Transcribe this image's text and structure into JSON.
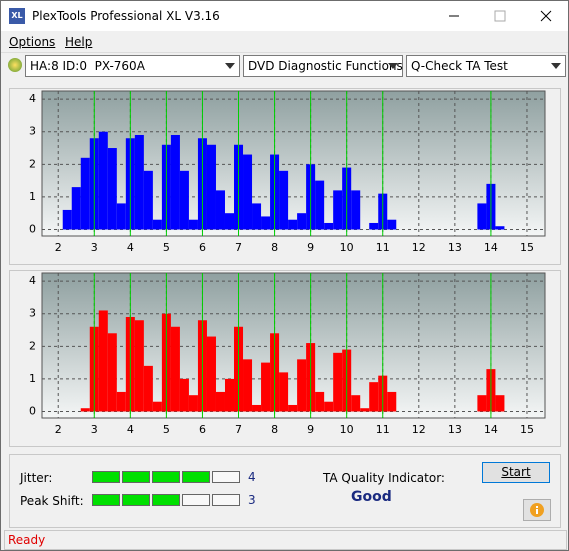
{
  "window": {
    "icon": "XL",
    "title": "PlexTools Professional XL V3.16"
  },
  "menu": [
    "Options",
    "Help"
  ],
  "toolbar": {
    "drive": "HA:8 ID:0  PX-760A",
    "function": "DVD Diagnostic Functions",
    "test": "Q-Check TA Test"
  },
  "chart_data": [
    {
      "type": "bar",
      "color": "#0000ff",
      "marker_color": "#00d000",
      "grid": true,
      "x": [
        2.25,
        2.5,
        2.75,
        3,
        3.25,
        3.5,
        3.75,
        4,
        4.25,
        4.5,
        4.75,
        5,
        5.25,
        5.5,
        5.75,
        6,
        6.25,
        6.5,
        6.75,
        7,
        7.25,
        7.5,
        7.75,
        8,
        8.25,
        8.5,
        8.75,
        9,
        9.25,
        9.5,
        9.75,
        10,
        10.25,
        10.5,
        10.75,
        11,
        11.25,
        11.5,
        11.75,
        12,
        12.25,
        12.5,
        12.75,
        13,
        13.25,
        13.5,
        13.75,
        14,
        14.25,
        14.5
      ],
      "values": [
        0.6,
        1.3,
        2.2,
        2.8,
        3.0,
        2.5,
        0.8,
        2.8,
        2.9,
        1.8,
        0.3,
        2.6,
        2.9,
        1.8,
        0.3,
        2.8,
        2.6,
        1.2,
        0.5,
        2.6,
        2.3,
        0.8,
        0.4,
        2.3,
        1.8,
        0.3,
        0.5,
        2.0,
        1.5,
        0.2,
        1.2,
        1.9,
        1.2,
        0,
        0.2,
        1.1,
        0.3,
        0,
        0,
        0,
        0,
        0,
        0,
        0,
        0,
        0,
        0.8,
        1.4,
        0.1,
        0
      ],
      "bar_width": 0.25,
      "markers": [
        3,
        4,
        5,
        6,
        7,
        8,
        9,
        10,
        11,
        14
      ],
      "xlim": [
        1.55,
        15.5
      ],
      "xticks": [
        2,
        3,
        4,
        5,
        6,
        7,
        8,
        9,
        10,
        11,
        12,
        13,
        14,
        15
      ],
      "ylim": [
        -0.2,
        4.25
      ],
      "yticks": [
        0,
        1,
        2,
        3,
        4
      ]
    },
    {
      "type": "bar",
      "color": "#ff0000",
      "marker_color": "#00d000",
      "grid": true,
      "x": [
        2.25,
        2.5,
        2.75,
        3,
        3.25,
        3.5,
        3.75,
        4,
        4.25,
        4.5,
        4.75,
        5,
        5.25,
        5.5,
        5.75,
        6,
        6.25,
        6.5,
        6.75,
        7,
        7.25,
        7.5,
        7.75,
        8,
        8.25,
        8.5,
        8.75,
        9,
        9.25,
        9.5,
        9.75,
        10,
        10.25,
        10.5,
        10.75,
        11,
        11.25,
        11.5,
        11.75,
        12,
        12.25,
        12.5,
        12.75,
        13,
        13.25,
        13.5,
        13.75,
        14,
        14.25,
        14.5
      ],
      "values": [
        0,
        0,
        0.1,
        2.6,
        3.1,
        2.4,
        0.6,
        2.9,
        2.8,
        1.4,
        0.3,
        3.0,
        2.6,
        1.0,
        0.5,
        2.8,
        2.3,
        0.6,
        1.0,
        2.6,
        1.6,
        0.2,
        1.5,
        2.4,
        1.2,
        0.2,
        1.6,
        2.1,
        0.6,
        0.3,
        1.8,
        1.9,
        0.5,
        0.1,
        0.9,
        1.1,
        0.6,
        0,
        0,
        0,
        0,
        0,
        0,
        0,
        0,
        0,
        0.5,
        1.3,
        0.5,
        0
      ],
      "bar_width": 0.25,
      "markers": [
        3,
        4,
        5,
        6,
        7,
        8,
        9,
        10,
        11,
        14
      ],
      "xlim": [
        1.55,
        15.5
      ],
      "xticks": [
        2,
        3,
        4,
        5,
        6,
        7,
        8,
        9,
        10,
        11,
        12,
        13,
        14,
        15
      ],
      "ylim": [
        -0.2,
        4.25
      ],
      "yticks": [
        0,
        1,
        2,
        3,
        4
      ]
    }
  ],
  "quality": {
    "jitter": {
      "label": "Jitter:",
      "value": 4,
      "segments": 5
    },
    "peak_shift": {
      "label": "Peak Shift:",
      "value": 3,
      "segments": 5
    },
    "indicator_label": "TA Quality Indicator:",
    "indicator": "Good",
    "start": "Start"
  },
  "status": "Ready"
}
